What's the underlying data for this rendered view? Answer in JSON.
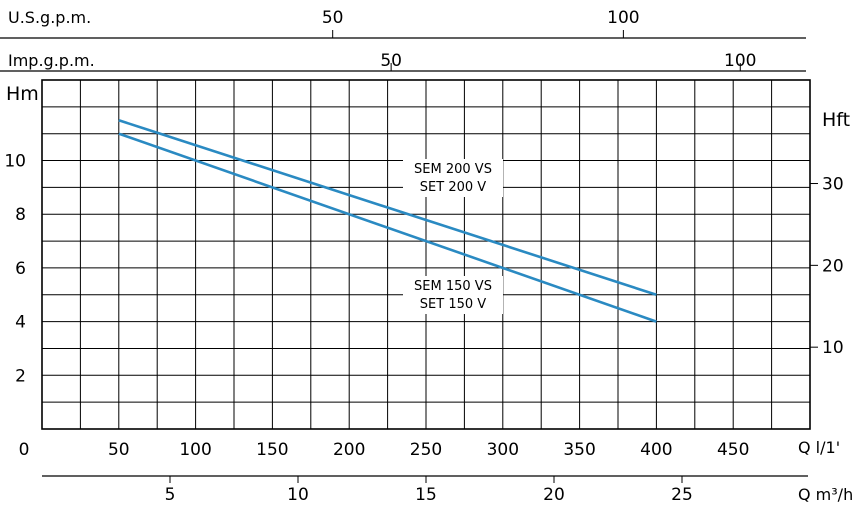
{
  "chart_data": {
    "type": "line",
    "title": "",
    "colors": {
      "curve": "#2a8ac2",
      "grid": "#000000"
    },
    "grid": true,
    "axes": {
      "top_usgpm": {
        "label": "U.S.g.p.m.",
        "ticks": [
          50,
          100
        ],
        "tick_labels": [
          "50",
          "100"
        ]
      },
      "top_impgpm": {
        "label": "Imp.g.p.m.",
        "ticks": [
          50,
          100
        ],
        "tick_labels": [
          "50",
          "100"
        ]
      },
      "x_lmin": {
        "label": "Q  l/1'",
        "range": [
          0,
          500
        ],
        "ticks": [
          0,
          50,
          100,
          150,
          200,
          250,
          300,
          350,
          400,
          450
        ],
        "tick_labels": [
          "0",
          "50",
          "100",
          "150",
          "200",
          "250",
          "300",
          "350",
          "400",
          "450"
        ]
      },
      "x_m3h": {
        "label": "Q  m³/h",
        "ticks": [
          5,
          10,
          15,
          20,
          25
        ],
        "tick_labels": [
          "5",
          "10",
          "15",
          "20",
          "25"
        ]
      },
      "y_m": {
        "label": "Hm",
        "range": [
          0,
          13
        ],
        "ticks": [
          2,
          4,
          6,
          8,
          10
        ],
        "tick_labels": [
          "2",
          "4",
          "6",
          "8",
          "10"
        ]
      },
      "y_ft": {
        "label": "Hft",
        "ticks": [
          10,
          20,
          30
        ],
        "tick_labels": [
          "10",
          "20",
          "30"
        ]
      }
    },
    "series": [
      {
        "name_line1": "SEM 200 VS",
        "name_line2": "SET 200 V",
        "x": [
          50,
          400
        ],
        "y": [
          11.5,
          5.0
        ]
      },
      {
        "name_line1": "SEM 150 VS",
        "name_line2": "SET 150 V",
        "x": [
          50,
          400
        ],
        "y": [
          11.0,
          4.0
        ]
      }
    ]
  }
}
